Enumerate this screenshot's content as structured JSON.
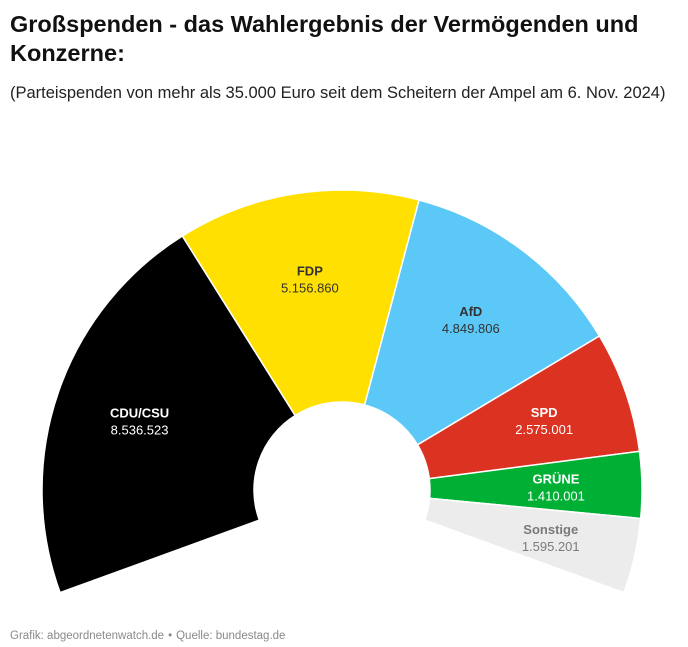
{
  "header": {
    "title": "Großspenden - das Wahlergebnis der Vermögenden und Konzerne:",
    "subtitle": "(Parteispenden von mehr als 35.000 Euro seit dem Scheitern der Ampel am 6. Nov. 2024)"
  },
  "footer": {
    "credit": "Grafik: abgeordnetenwatch.de",
    "separator": "•",
    "source": "Quelle: bundestag.de"
  },
  "chart_data": {
    "type": "pie",
    "subtype": "semicircle-donut",
    "title": "Großspenden - das Wahlergebnis der Vermögenden und Konzerne:",
    "subtitle": "(Parteispenden von mehr als 35.000 Euro seit dem Scheitern der Ampel am 6. Nov. 2024)",
    "unit": "Euro",
    "slices": [
      {
        "name": "CDU/CSU",
        "value": 8536523,
        "value_label": "8.536.523",
        "color": "#000000",
        "label_color": "#ffffff"
      },
      {
        "name": "FDP",
        "value": 5156860,
        "value_label": "5.156.860",
        "color": "#ffe000",
        "label_color": "#333333"
      },
      {
        "name": "AfD",
        "value": 4849806,
        "value_label": "4.849.806",
        "color": "#5bc8f7",
        "label_color": "#333333"
      },
      {
        "name": "SPD",
        "value": 2575001,
        "value_label": "2.575.001",
        "color": "#dc3222",
        "label_color": "#ffffff"
      },
      {
        "name": "GRÜNE",
        "value": 1410001,
        "value_label": "1.410.001",
        "color": "#00b035",
        "label_color": "#ffffff"
      },
      {
        "name": "Sonstige",
        "value": 1595201,
        "value_label": "1.595.201",
        "color": "#ececec",
        "label_color": "#7a7a7a"
      }
    ]
  }
}
